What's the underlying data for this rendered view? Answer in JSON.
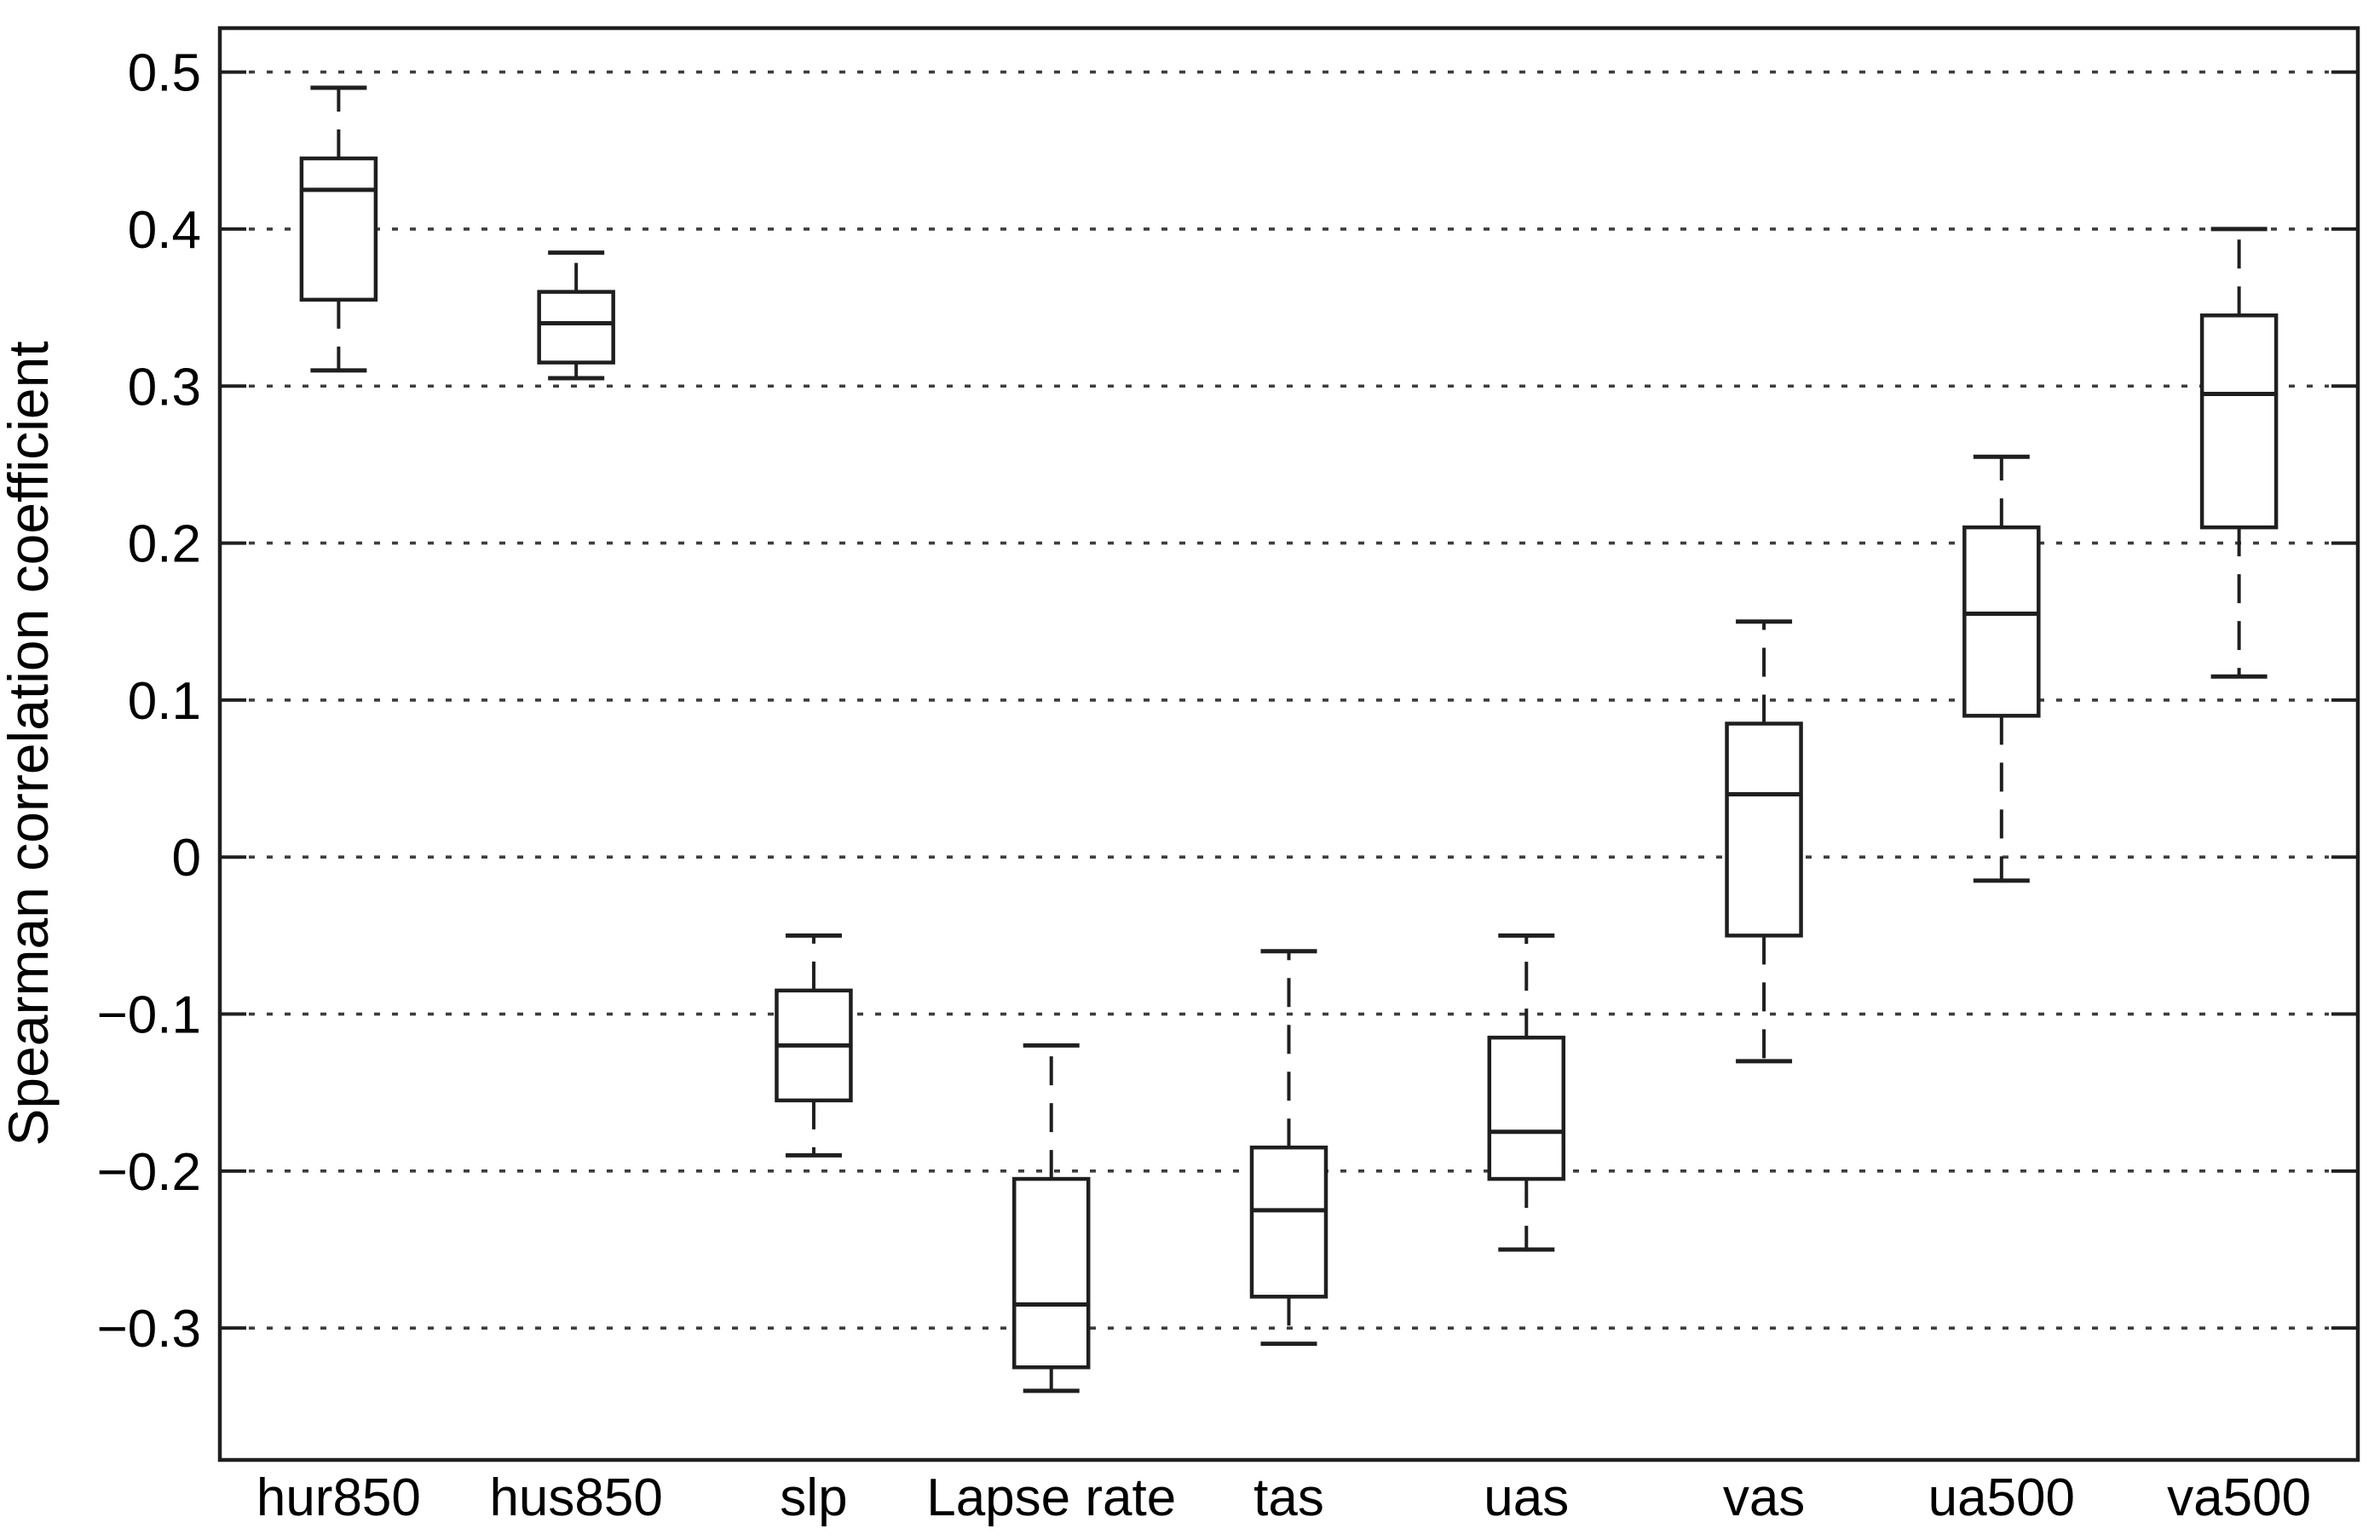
{
  "figure": {
    "background": "#ffffff",
    "ink_color": "#1f1f1f",
    "grid_color": "#3d3d3d",
    "title": ""
  },
  "chart_data": {
    "type": "boxplot",
    "title": "",
    "xlabel": "",
    "ylabel": "Spearman correlation coefficient",
    "categories": [
      "hur850",
      "hus850",
      "slp",
      "Lapse rate",
      "tas",
      "uas",
      "vas",
      "ua500",
      "va500"
    ],
    "boxes": [
      {
        "label": "hur850",
        "whisker_low": 0.31,
        "q1": 0.355,
        "median": 0.425,
        "q3": 0.445,
        "whisker_high": 0.49
      },
      {
        "label": "hus850",
        "whisker_low": 0.305,
        "q1": 0.315,
        "median": 0.34,
        "q3": 0.36,
        "whisker_high": 0.385
      },
      {
        "label": "slp",
        "whisker_low": -0.19,
        "q1": -0.155,
        "median": -0.12,
        "q3": -0.085,
        "whisker_high": -0.05
      },
      {
        "label": "Lapse rate",
        "whisker_low": -0.34,
        "q1": -0.325,
        "median": -0.285,
        "q3": -0.205,
        "whisker_high": -0.12
      },
      {
        "label": "tas",
        "whisker_low": -0.31,
        "q1": -0.28,
        "median": -0.225,
        "q3": -0.185,
        "whisker_high": -0.06
      },
      {
        "label": "uas",
        "whisker_low": -0.25,
        "q1": -0.205,
        "median": -0.175,
        "q3": -0.115,
        "whisker_high": -0.05
      },
      {
        "label": "vas",
        "whisker_low": -0.13,
        "q1": -0.05,
        "median": 0.04,
        "q3": 0.085,
        "whisker_high": 0.15
      },
      {
        "label": "ua500",
        "whisker_low": -0.015,
        "q1": 0.09,
        "median": 0.155,
        "q3": 0.21,
        "whisker_high": 0.255
      },
      {
        "label": "va500",
        "whisker_low": 0.115,
        "q1": 0.21,
        "median": 0.295,
        "q3": 0.345,
        "whisker_high": 0.4
      }
    ],
    "yticks": [
      0.5,
      0.4,
      0.3,
      0.2,
      0.1,
      0,
      -0.1,
      -0.2,
      -0.3
    ],
    "ytick_labels": [
      "0.5",
      "0.4",
      "0.3",
      "0.2",
      "0.1",
      "0",
      "−0.1",
      "−0.2",
      "−0.3"
    ],
    "ylim": [
      -0.384,
      0.528
    ],
    "grid": "horizontal dotted line at every y tick",
    "legend": "none",
    "box_style": "white fill, black outline, solid median, dashed whiskers with solid caps"
  }
}
